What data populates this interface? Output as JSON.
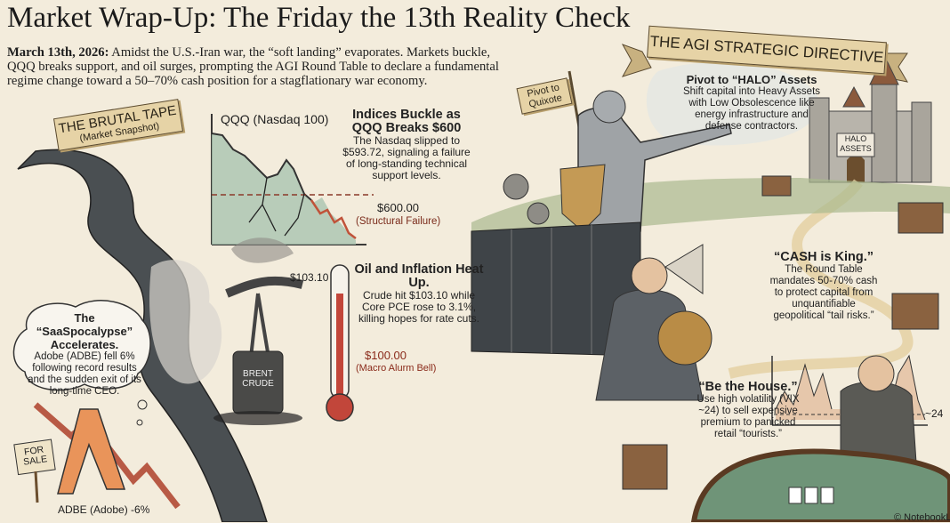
{
  "title": "Market Wrap-Up: The Friday the 13th Reality Check",
  "intro": {
    "date": "March 13th, 2026:",
    "text": "Amidst the U.S.-Iran war, the “soft landing” evaporates. Markets buckle, QQQ breaks support, and oil surges, prompting the AGI Round Table to declare a fundamental regime change toward a 50–70% cash position for a stagflationary war economy."
  },
  "left": {
    "banner_title": "THE BRUTAL TAPE",
    "banner_subtitle": "(Market Snapshot)",
    "qqq": {
      "axis_label": "QQQ (Nasdaq 100)",
      "heading": "Indices Buckle as QQQ Breaks $600",
      "text": "The Nasdaq slipped to $593.72, signaling a failure of long-standing technical support levels.",
      "support_label": "$600.00",
      "support_note": "(Structural Failure)"
    },
    "oil": {
      "heading": "Oil and Inflation Heat Up.",
      "text": "Crude hit $103.10 while Core PCE rose to 3.1%, killing hopes for rate cuts.",
      "top_label": "$103.10",
      "bell_label": "$100.00",
      "bell_note": "(Macro Alurm Bell)",
      "barrel_label": "BRENT CRUDE"
    },
    "adobe": {
      "heading": "The “SaaSpocalypse” Accelerates.",
      "text": "Adobe (ADBE) fell 6% following record results and the sudden exit of its long-time CEO.",
      "sign": "FOR SALE",
      "caption": "ADBE (Adobe) -6%"
    }
  },
  "right": {
    "banner_title": "THE AGI STRATEGIC DIRECTIVE",
    "flag": "Pivot to Quixote",
    "halo": {
      "heading": "Pivot to “HALO” Assets",
      "text": "Shift capital into Heavy Assets with Low Obsolescence like energy infrastructure and defense contractors.",
      "castle_sign": "HALO ASSETS"
    },
    "cash": {
      "heading": "“CASH is King.”",
      "text": "The Round Table mandates 50-70% cash to protect capital from unquantifiable geopolitical “tail risks.”"
    },
    "house": {
      "heading": "“Be the House.”",
      "text": "Use high volatility (VIX ~24) to sell expensive premium to panicked retail “tourists.”",
      "vix_label": "~24"
    }
  },
  "footer": "© NotebookLM",
  "colors": {
    "background": "#f3ecdc",
    "banner": "#e6d3a6",
    "chart_green": "#7fa58e",
    "chart_red": "#d9826a",
    "felt": "#6f9478"
  }
}
